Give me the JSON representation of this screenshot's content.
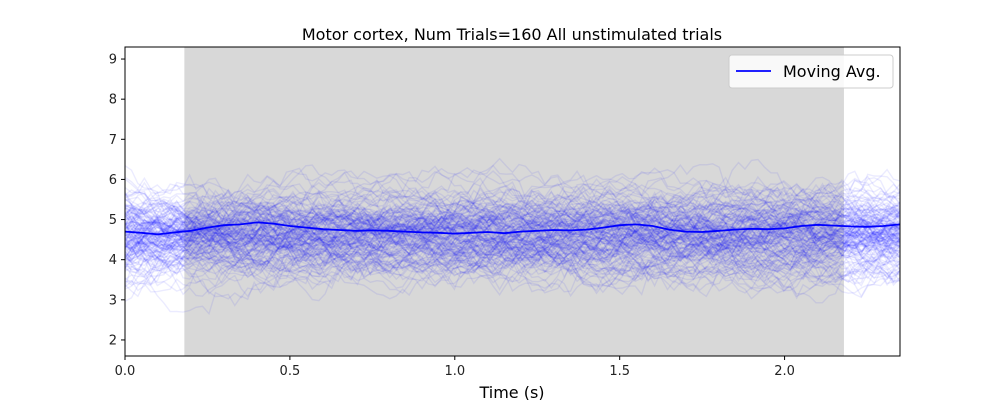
{
  "chart_data": {
    "type": "line",
    "title": "Motor cortex, Num Trials=160 All unstimulated trials",
    "xlabel": "Time (s)",
    "ylabel": "",
    "xlim": [
      0.0,
      2.35
    ],
    "ylim": [
      1.6,
      9.3
    ],
    "xticks": [
      0.0,
      0.5,
      1.0,
      1.5,
      2.0
    ],
    "xtick_labels": [
      "0.0",
      "0.5",
      "1.0",
      "1.5",
      "2.0"
    ],
    "yticks": [
      2,
      3,
      4,
      5,
      6,
      7,
      8,
      9
    ],
    "ytick_labels": [
      "2",
      "3",
      "4",
      "5",
      "6",
      "7",
      "8",
      "9"
    ],
    "shaded_region": {
      "x_start": 0.18,
      "x_end": 2.18,
      "color": "#d8d8d8"
    },
    "trials": {
      "count": 160,
      "color": "#0000ff",
      "opacity": 0.08
    },
    "legend": {
      "position": "top-right",
      "entries": [
        "Moving Avg."
      ]
    },
    "series": [
      {
        "name": "Moving Avg.",
        "color": "#0000ff",
        "x": [
          0.0,
          0.05,
          0.1,
          0.15,
          0.2,
          0.25,
          0.3,
          0.35,
          0.4,
          0.45,
          0.5,
          0.55,
          0.6,
          0.65,
          0.7,
          0.75,
          0.8,
          0.85,
          0.9,
          0.95,
          1.0,
          1.05,
          1.1,
          1.15,
          1.2,
          1.25,
          1.3,
          1.35,
          1.4,
          1.45,
          1.5,
          1.55,
          1.6,
          1.65,
          1.7,
          1.75,
          1.8,
          1.85,
          1.9,
          1.95,
          2.0,
          2.05,
          2.1,
          2.15,
          2.2,
          2.25,
          2.3,
          2.35
        ],
        "values": [
          4.7,
          4.67,
          4.63,
          4.68,
          4.72,
          4.8,
          4.86,
          4.88,
          4.93,
          4.9,
          4.84,
          4.8,
          4.76,
          4.74,
          4.72,
          4.73,
          4.72,
          4.7,
          4.68,
          4.67,
          4.65,
          4.67,
          4.69,
          4.66,
          4.7,
          4.72,
          4.74,
          4.73,
          4.75,
          4.8,
          4.86,
          4.88,
          4.84,
          4.75,
          4.7,
          4.69,
          4.72,
          4.75,
          4.77,
          4.76,
          4.78,
          4.84,
          4.87,
          4.85,
          4.83,
          4.82,
          4.84,
          4.88
        ]
      }
    ]
  }
}
